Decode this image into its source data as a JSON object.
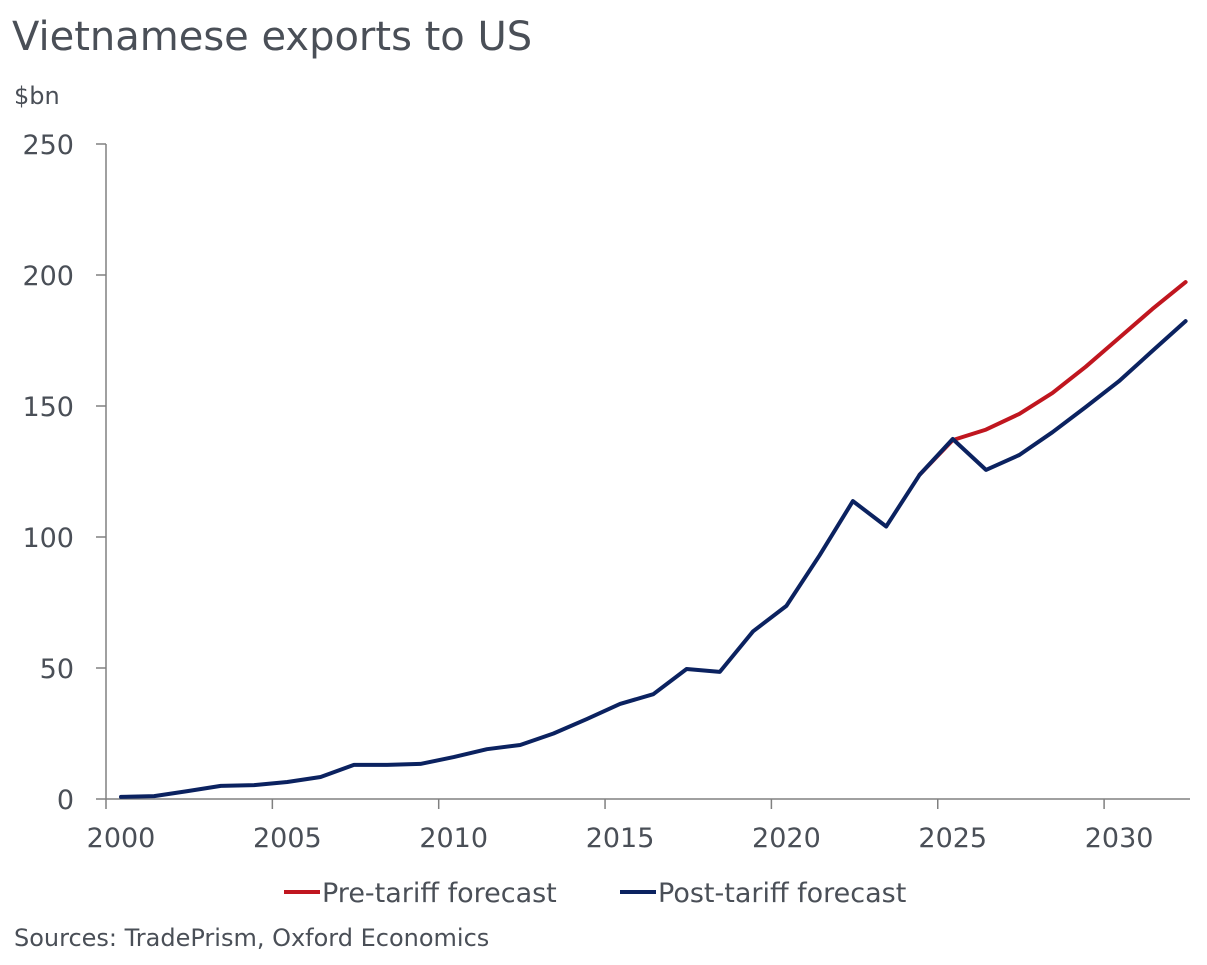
{
  "chart_data": {
    "type": "line",
    "title": "Vietnamese exports to US",
    "ylabel": "$bn",
    "xlabel": "",
    "source": "Sources: TradePrism, Oxford Economics",
    "xlim": [
      2000,
      2033
    ],
    "ylim": [
      0,
      250
    ],
    "x_ticks": [
      2000,
      2005,
      2010,
      2015,
      2020,
      2025,
      2030
    ],
    "y_ticks": [
      0,
      50,
      100,
      150,
      200,
      250
    ],
    "legend_position": "bottom",
    "grid": false,
    "series": [
      {
        "name": "Pre-tariff forecast",
        "color": "#c0161f",
        "x": [
          2024,
          2025,
          2026,
          2027,
          2028,
          2029,
          2030,
          2031,
          2032
        ],
        "values": [
          123.7,
          137,
          141,
          147,
          155,
          165,
          176,
          187,
          197.3
        ]
      },
      {
        "name": "Post-tariff forecast",
        "color": "#0b2260",
        "x": [
          2000,
          2001,
          2002,
          2003,
          2004,
          2005,
          2006,
          2007,
          2008,
          2009,
          2010,
          2011,
          2012,
          2013,
          2014,
          2015,
          2016,
          2017,
          2018,
          2019,
          2020,
          2021,
          2022,
          2023,
          2024,
          2025,
          2026,
          2027,
          2028,
          2029,
          2030,
          2031,
          2032
        ],
        "values": [
          0.8,
          1.1,
          3,
          5,
          5.3,
          6.5,
          8.4,
          13,
          13,
          13.4,
          16,
          19,
          20.6,
          25,
          30.5,
          36.3,
          40,
          49.6,
          48.5,
          64,
          73.7,
          93,
          113.7,
          104,
          123.7,
          137.4,
          125.6,
          131.3,
          140,
          149.6,
          159.5,
          171,
          182.4
        ]
      }
    ]
  }
}
